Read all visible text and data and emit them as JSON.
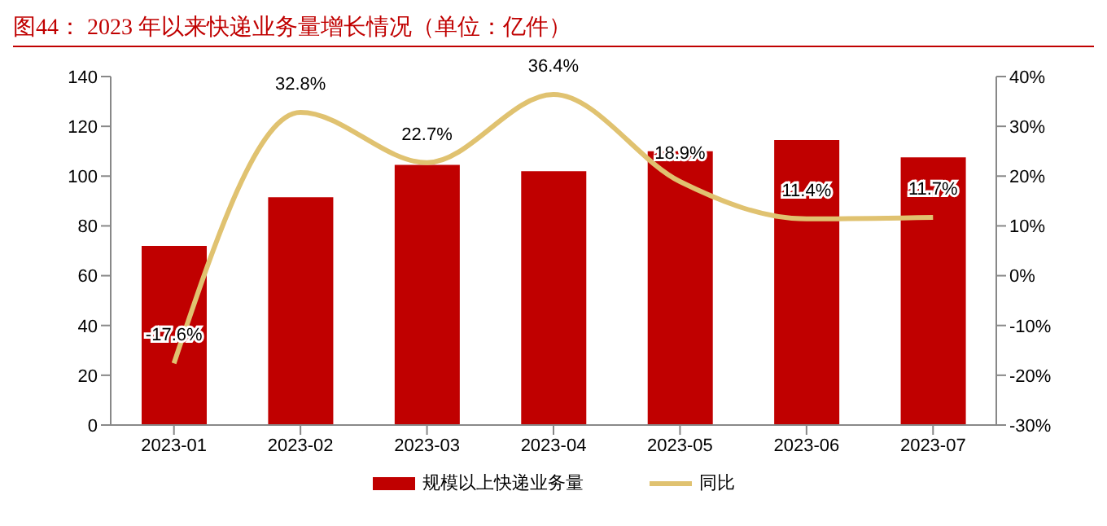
{
  "chart_data": {
    "type": "bar",
    "title": "图44：  2023 年以来快递业务量增长情况（单位：亿件）",
    "categories": [
      "2023-01",
      "2023-02",
      "2023-03",
      "2023-04",
      "2023-05",
      "2023-06",
      "2023-07"
    ],
    "series": [
      {
        "name": "规模以上快递业务量",
        "color": "#c00000",
        "values": [
          72,
          91.5,
          104.5,
          102,
          110,
          114.5,
          107.5
        ]
      },
      {
        "name": "同比",
        "type": "line",
        "axis": "y2",
        "color": "#e0c270",
        "values": [
          -17.6,
          32.8,
          22.7,
          36.4,
          18.9,
          11.4,
          11.7
        ],
        "value_labels": [
          "-17.6%",
          "32.8%",
          "22.7%",
          "36.4%",
          "18.9%",
          "11.4%",
          "11.7%"
        ]
      }
    ],
    "ylim": [
      0,
      140
    ],
    "yticks": [
      0,
      20,
      40,
      60,
      80,
      100,
      120,
      140
    ],
    "y2lim": [
      -30,
      40
    ],
    "y2ticks": [
      {
        "value": -30,
        "label": "-30%"
      },
      {
        "value": -20,
        "label": "-20%"
      },
      {
        "value": -10,
        "label": "-10%"
      },
      {
        "value": 0,
        "label": "0%"
      },
      {
        "value": 10,
        "label": "10%"
      },
      {
        "value": 20,
        "label": "20%"
      },
      {
        "value": 30,
        "label": "30%"
      },
      {
        "value": 40,
        "label": "40%"
      }
    ],
    "grid": false,
    "legend": "bottom",
    "marker": "none"
  }
}
